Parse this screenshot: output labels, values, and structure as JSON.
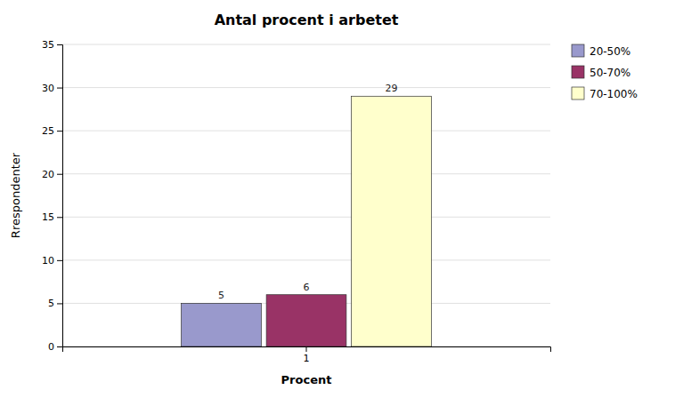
{
  "chart_data": {
    "type": "bar",
    "title": "Antal procent i arbetet",
    "xlabel": "Procent",
    "ylabel": "Rrespondenter",
    "categories": [
      "1"
    ],
    "series": [
      {
        "name": "20-50%",
        "color": "#9999cc",
        "values": [
          5
        ]
      },
      {
        "name": "50-70%",
        "color": "#993366",
        "values": [
          6
        ]
      },
      {
        "name": "70-100%",
        "color": "#ffffcc",
        "values": [
          29
        ]
      }
    ],
    "ylim": [
      0,
      35
    ],
    "yticks": [
      0,
      5,
      10,
      15,
      20,
      25,
      30,
      35
    ],
    "grid": true,
    "data_labels": true,
    "legend": "right"
  }
}
